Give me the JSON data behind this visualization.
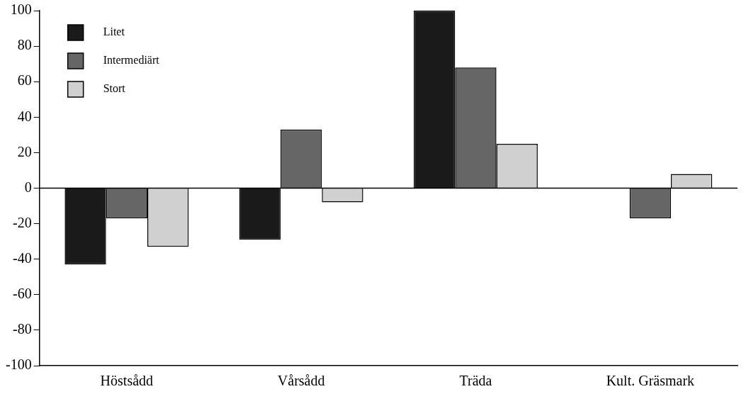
{
  "chart_data": {
    "type": "bar",
    "categories": [
      "Höstsådd",
      "Vårsådd",
      "Träda",
      "Kult. Gräsmark"
    ],
    "series": [
      {
        "name": "Litet",
        "color": "#1a1a1a",
        "values": [
          -43,
          -29,
          100,
          null
        ]
      },
      {
        "name": "Intermediärt",
        "color": "#666666",
        "values": [
          -17,
          33,
          68,
          -17
        ]
      },
      {
        "name": "Stort",
        "color": "#d0d0d0",
        "values": [
          -33,
          -8,
          25,
          8
        ]
      }
    ],
    "ylim": [
      -100,
      100
    ],
    "yticks": [
      -100,
      -80,
      -60,
      -40,
      -20,
      0,
      20,
      40,
      60,
      80,
      100
    ],
    "grid": false,
    "legend": "top left",
    "ref_lines": [
      {
        "axis": "y",
        "value": 0,
        "color": "#000000"
      }
    ]
  }
}
